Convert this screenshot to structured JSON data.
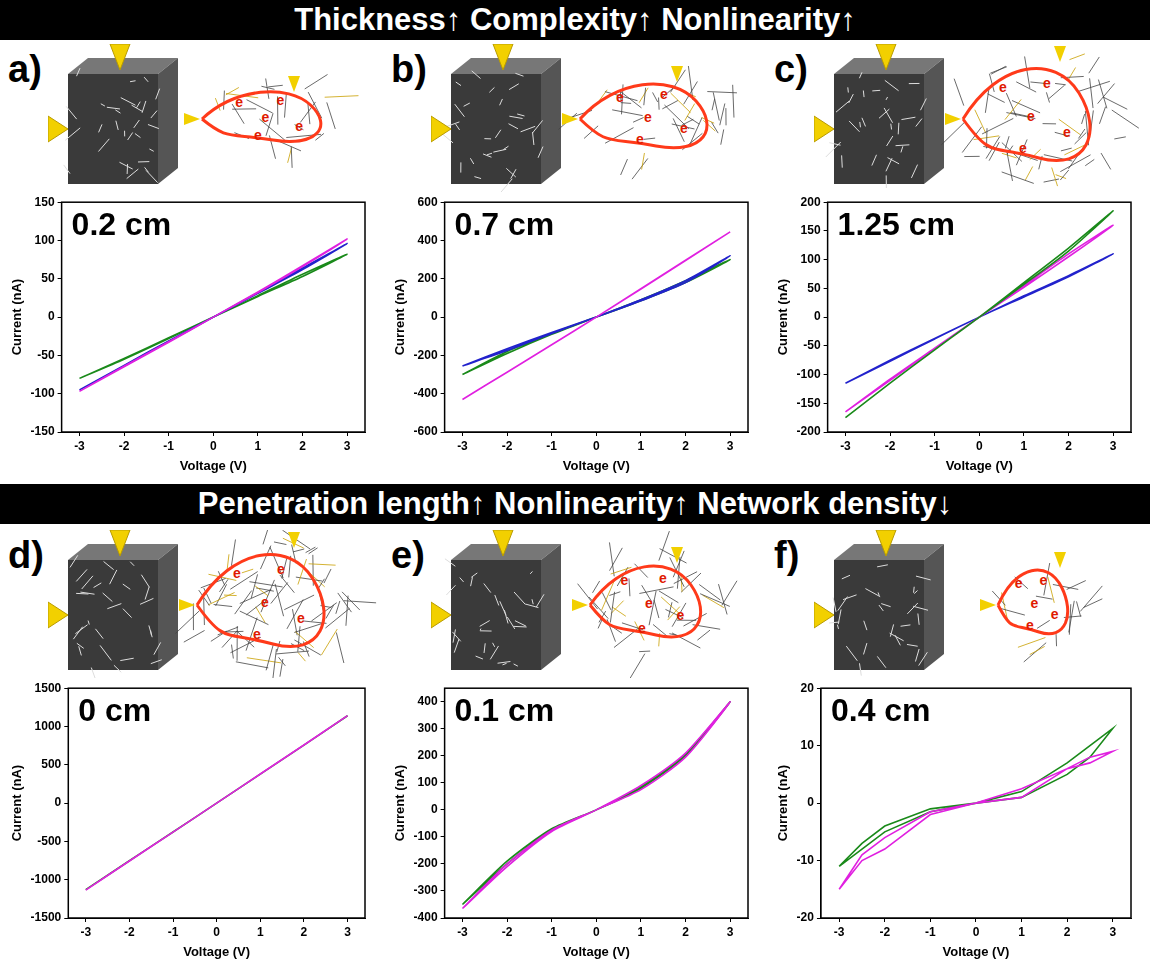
{
  "headers": [
    "Thickness↑ Complexity↑ Nonlinearity↑",
    "Penetration length↑ Nonlinearity↑ Network density↓"
  ],
  "diagram_label": "e",
  "chart_data": [
    {
      "type": "line",
      "panel": "a)",
      "annotation": "0.2 cm",
      "x_label": "Voltage (V)",
      "y_label": "Current (nA)",
      "xlim": [
        -3.4,
        3.4
      ],
      "xticks": [
        -3,
        -2,
        -1,
        0,
        1,
        2,
        3
      ],
      "ylim": [
        -150,
        150
      ],
      "yticks": [
        -150,
        -100,
        -50,
        0,
        50,
        100,
        150
      ],
      "grid": false,
      "series": [
        {
          "color": "#e020e0",
          "x": [
            -3,
            -2,
            -1,
            0,
            1,
            2,
            3,
            2,
            1,
            0,
            -1,
            -2,
            -3
          ],
          "values": [
            -97,
            -64,
            -32,
            0,
            33,
            67,
            102,
            66,
            32,
            0,
            -33,
            -65,
            -97
          ]
        },
        {
          "color": "#2222cc",
          "x": [
            -3,
            -2,
            -1,
            0,
            1,
            2,
            3,
            2,
            1,
            0,
            -1,
            -2,
            -3
          ],
          "values": [
            -95,
            -63,
            -31,
            0,
            32,
            64,
            96,
            62,
            31,
            0,
            -32,
            -64,
            -95
          ]
        },
        {
          "color": "#1a8a1a",
          "x": [
            -3,
            -2,
            -1,
            0,
            1,
            2,
            3,
            2,
            1,
            0,
            -1,
            -2,
            -3
          ],
          "values": [
            -80,
            -55,
            -28,
            0,
            28,
            56,
            82,
            53,
            27,
            0,
            -27,
            -54,
            -80
          ]
        }
      ]
    },
    {
      "type": "line",
      "panel": "b)",
      "annotation": "0.7 cm",
      "x_label": "Voltage (V)",
      "y_label": "Current (nA)",
      "xlim": [
        -3.4,
        3.4
      ],
      "xticks": [
        -3,
        -2,
        -1,
        0,
        1,
        2,
        3
      ],
      "ylim": [
        -600,
        600
      ],
      "yticks": [
        -600,
        -400,
        -200,
        0,
        200,
        400,
        600
      ],
      "grid": false,
      "series": [
        {
          "color": "#e020e0",
          "x": [
            -3,
            -2,
            -1,
            0,
            1,
            2,
            3,
            2,
            1,
            0,
            -1,
            -2,
            -3
          ],
          "values": [
            -430,
            -288,
            -145,
            0,
            148,
            297,
            445,
            295,
            147,
            0,
            -144,
            -287,
            -430
          ]
        },
        {
          "color": "#2222cc",
          "x": [
            -3,
            -2,
            -1,
            0,
            1,
            2,
            3,
            2,
            1,
            0,
            -1,
            -2,
            -3
          ],
          "values": [
            -255,
            -165,
            -80,
            0,
            85,
            180,
            320,
            190,
            90,
            0,
            -85,
            -175,
            -255
          ]
        },
        {
          "color": "#1a8a1a",
          "x": [
            -3,
            -2,
            -1,
            0,
            1,
            2,
            3,
            2,
            1,
            0,
            -1,
            -2,
            -3
          ],
          "values": [
            -300,
            -190,
            -90,
            0,
            90,
            190,
            300,
            180,
            85,
            0,
            -85,
            -180,
            -300
          ]
        }
      ]
    },
    {
      "type": "line",
      "panel": "c)",
      "annotation": "1.25 cm",
      "x_label": "Voltage (V)",
      "y_label": "Current (nA)",
      "xlim": [
        -3.4,
        3.4
      ],
      "xticks": [
        -3,
        -2,
        -1,
        0,
        1,
        2,
        3
      ],
      "ylim": [
        -200,
        200
      ],
      "yticks": [
        -200,
        -150,
        -100,
        -50,
        0,
        50,
        100,
        150,
        200
      ],
      "grid": false,
      "series": [
        {
          "color": "#1a8a1a",
          "x": [
            -3,
            -2,
            -1,
            0,
            1,
            2,
            3,
            2,
            1,
            0,
            -1,
            -2,
            -3
          ],
          "values": [
            -175,
            -115,
            -57,
            0,
            60,
            120,
            185,
            115,
            57,
            0,
            -57,
            -115,
            -175
          ]
        },
        {
          "color": "#e020e0",
          "x": [
            -3,
            -2,
            -1,
            0,
            1,
            2,
            3,
            2,
            1,
            0,
            -1,
            -2,
            -3
          ],
          "values": [
            -165,
            -110,
            -55,
            0,
            55,
            110,
            160,
            105,
            52,
            0,
            -54,
            -108,
            -165
          ]
        },
        {
          "color": "#2222cc",
          "x": [
            -3,
            -2,
            -1,
            0,
            1,
            2,
            3,
            2,
            1,
            0,
            -1,
            -2,
            -3
          ],
          "values": [
            -115,
            -75,
            -37,
            0,
            37,
            72,
            110,
            70,
            35,
            0,
            -38,
            -77,
            -115
          ]
        }
      ]
    },
    {
      "type": "line",
      "panel": "d)",
      "annotation": "0 cm",
      "x_label": "Voltage (V)",
      "y_label": "Current (nA)",
      "xlim": [
        -3.4,
        3.4
      ],
      "xticks": [
        -3,
        -2,
        -1,
        0,
        1,
        2,
        3
      ],
      "ylim": [
        -1500,
        1500
      ],
      "yticks": [
        -1500,
        -1000,
        -500,
        0,
        500,
        1000,
        1500
      ],
      "grid": false,
      "series": [
        {
          "color": "#e020e0",
          "x": [
            -3,
            -2,
            -1,
            0,
            1,
            2,
            3,
            2,
            1,
            0,
            -1,
            -2,
            -3
          ],
          "values": [
            -1135,
            -756,
            -378,
            0,
            380,
            760,
            1142,
            758,
            379,
            0,
            -378,
            -755,
            -1135
          ]
        },
        {
          "color": "#1a8a1a",
          "x": [
            -3,
            -2,
            -1,
            0,
            1,
            2,
            3,
            2,
            1,
            0,
            -1,
            -2,
            -3
          ],
          "values": [
            -1130,
            -753,
            -377,
            0,
            378,
            757,
            1140,
            757,
            378,
            0,
            -377,
            -753,
            -1130
          ]
        }
      ]
    },
    {
      "type": "line",
      "panel": "e)",
      "annotation": "0.1 cm",
      "x_label": "Voltage (V)",
      "y_label": "Current (nA)",
      "xlim": [
        -3.4,
        3.4
      ],
      "xticks": [
        -3,
        -2,
        -1,
        0,
        1,
        2,
        3
      ],
      "ylim": [
        -400,
        450
      ],
      "yticks": [
        -400,
        -300,
        -200,
        -100,
        0,
        100,
        200,
        300,
        400
      ],
      "grid": false,
      "series": [
        {
          "color": "#e020e0",
          "x": [
            -3,
            -2,
            -1,
            0,
            1,
            2,
            3,
            2,
            1,
            0,
            -1,
            -2,
            -3
          ],
          "values": [
            -365,
            -200,
            -75,
            0,
            75,
            195,
            400,
            210,
            90,
            0,
            -80,
            -210,
            -365
          ]
        },
        {
          "color": "#1a8a1a",
          "x": [
            -3,
            -2,
            -1,
            0,
            1,
            2,
            3,
            2,
            1,
            0,
            -1,
            -2,
            -3
          ],
          "values": [
            -350,
            -190,
            -70,
            0,
            80,
            200,
            400,
            205,
            85,
            0,
            -75,
            -200,
            -350
          ]
        }
      ]
    },
    {
      "type": "line",
      "panel": "f)",
      "annotation": "0.4 cm",
      "x_label": "Voltage (V)",
      "y_label": "Current (nA)",
      "xlim": [
        -3.4,
        3.4
      ],
      "xticks": [
        -3,
        -2,
        -1,
        0,
        1,
        2,
        3
      ],
      "ylim": [
        -20,
        20
      ],
      "yticks": [
        -20,
        -10,
        0,
        10,
        20
      ],
      "grid": false,
      "series": [
        {
          "color": "#e020e0",
          "x": [
            -3,
            -2.5,
            -2,
            -1,
            0,
            1,
            2,
            2.5,
            3,
            2.5,
            2,
            1,
            0,
            -1,
            -2,
            -2.5,
            -3
          ],
          "values": [
            -15,
            -9,
            -6,
            -1.5,
            0,
            1,
            6,
            7,
            9,
            8,
            6,
            2.5,
            0,
            -2,
            -8,
            -10,
            -15
          ]
        },
        {
          "color": "#1a8a1a",
          "x": [
            -3,
            -2.5,
            -2,
            -1,
            0,
            1,
            2,
            2.5,
            3,
            2.5,
            2,
            1,
            0,
            -1,
            -2,
            -2.5,
            -3
          ],
          "values": [
            -11,
            -7,
            -4,
            -1,
            0,
            1,
            5,
            8,
            13,
            10,
            7,
            2,
            0,
            -1.5,
            -5,
            -8,
            -11
          ]
        }
      ]
    }
  ]
}
